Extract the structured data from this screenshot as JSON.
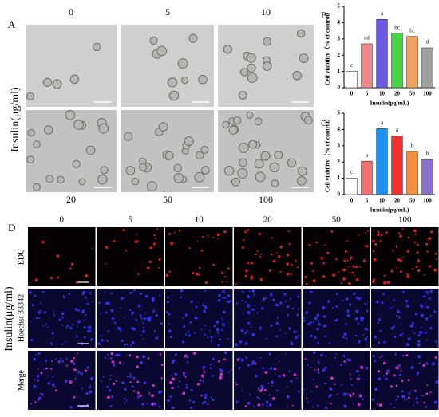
{
  "panel_a": {
    "label": "A",
    "side_label": "Insulin(μg/ml)",
    "top_labels": [
      "0",
      "5",
      "10"
    ],
    "bottom_labels": [
      "20",
      "50",
      "100"
    ]
  },
  "chart_data": [
    {
      "type": "bar",
      "panel": "B",
      "ylabel": "Cell viability（% of control）",
      "xlabel": "Insulin(pg/mL)",
      "categories": [
        "0",
        "5",
        "10",
        "20",
        "50",
        "100"
      ],
      "values": [
        1,
        2.7,
        4.2,
        3.35,
        3.15,
        2.45
      ],
      "annotations": [
        "c",
        "cd",
        "a",
        "bc",
        "bc",
        "d"
      ],
      "colors": [
        "#ffffff",
        "#f08888",
        "#6a5ae0",
        "#44d444",
        "#f0a060",
        "#a0a0a0"
      ],
      "ylim": [
        0,
        5
      ],
      "yticks": [
        0,
        1,
        2,
        3,
        4,
        5
      ]
    },
    {
      "type": "bar",
      "panel": "C",
      "ylabel": "Cell viability（% of control）",
      "xlabel": "Insulin(pg/mL)",
      "categories": [
        "0",
        "5",
        "10",
        "20",
        "50",
        "100"
      ],
      "values": [
        1,
        2.05,
        4.05,
        3.6,
        2.65,
        2.15
      ],
      "annotations": [
        "c",
        "b",
        "a",
        "a",
        "b",
        "b"
      ],
      "colors": [
        "#ffffff",
        "#f07070",
        "#2090f0",
        "#f03030",
        "#f09040",
        "#8a70d0"
      ],
      "ylim": [
        0,
        5
      ],
      "yticks": [
        0,
        1,
        2,
        3,
        4,
        5
      ]
    }
  ],
  "panel_d": {
    "label": "D",
    "side_label": "Insulin(μg/ml)",
    "columns": [
      "0",
      "5",
      "10",
      "20",
      "50",
      "100"
    ],
    "rows": [
      "EDU",
      "Hoechst 33342",
      "Merge"
    ]
  }
}
